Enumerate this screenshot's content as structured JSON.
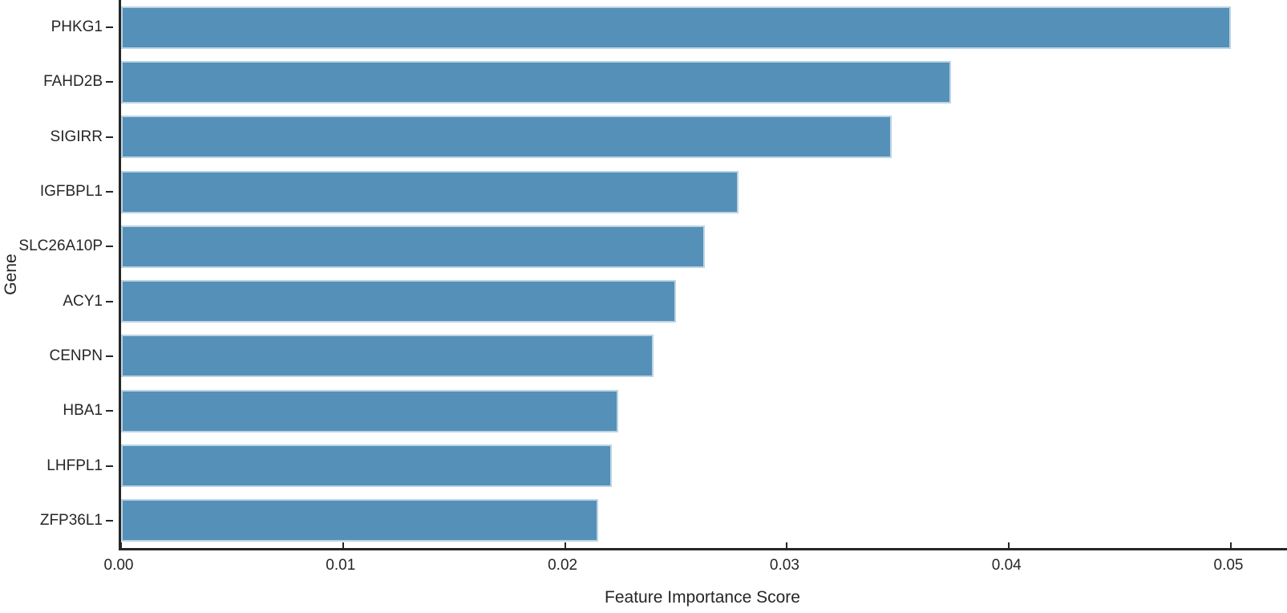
{
  "chart_data": {
    "type": "bar",
    "orientation": "horizontal",
    "title": "",
    "xlabel": "Feature Importance Score",
    "ylabel": "Gene",
    "categories": [
      "PHKG1",
      "FAHD2B",
      "SIGIRR",
      "IGFBPL1",
      "SLC26A10P",
      "ACY1",
      "CENPN",
      "HBA1",
      "LHFPL1",
      "ZFP36L1"
    ],
    "values": [
      0.05,
      0.0374,
      0.0347,
      0.0278,
      0.0263,
      0.025,
      0.024,
      0.0224,
      0.0221,
      0.0215
    ],
    "xlim": [
      0,
      0.0526
    ],
    "xticks": [
      0,
      0.01,
      0.02,
      0.03,
      0.04,
      0.05
    ],
    "xtick_labels": [
      "0.00",
      "0.01",
      "0.02",
      "0.03",
      "0.04",
      "0.05"
    ],
    "grid": false,
    "legend": null,
    "bar_color": "#5590B8",
    "bar_edge_color": "#BCD4E4",
    "axis_color": "#262626",
    "text_color": "#262626",
    "background_color": "#FFFFFF"
  }
}
